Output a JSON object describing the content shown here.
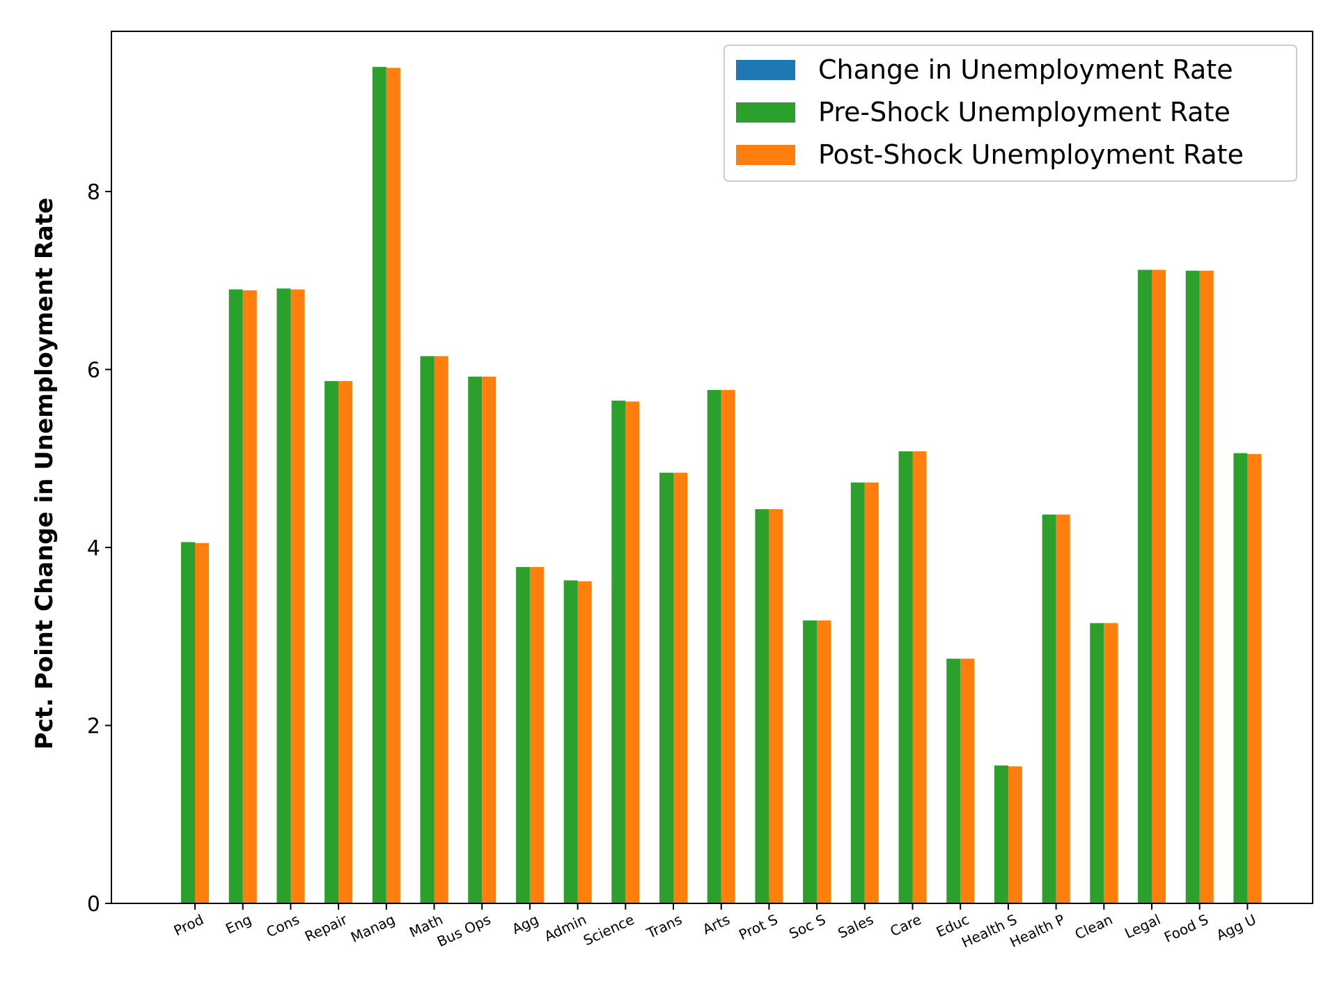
{
  "chart_data": {
    "type": "bar",
    "title": "",
    "xlabel": "",
    "ylabel": "Pct. Point Change in Unemployment Rate",
    "ylim": [
      0,
      9.8
    ],
    "yticks": [
      0,
      2,
      4,
      6,
      8
    ],
    "grid": false,
    "legend_position": "top-right",
    "categories": [
      "Prod",
      "Eng",
      "Cons",
      "Repair",
      "Manag",
      "Math",
      "Bus Ops",
      "Agg",
      "Admin",
      "Science",
      "Trans",
      "Arts",
      "Prot S",
      "Soc S",
      "Sales",
      "Care",
      "Educ",
      "Health S",
      "Health P",
      "Clean",
      "Legal",
      "Food S",
      "Agg U"
    ],
    "series": [
      {
        "name": "Change in Unemployment Rate",
        "color": "#1f77b4",
        "values": [
          0.01,
          0.01,
          0.01,
          0.0,
          0.01,
          0.0,
          0.0,
          0.0,
          0.01,
          0.01,
          0.0,
          0.0,
          0.0,
          0.0,
          0.0,
          0.0,
          0.0,
          0.01,
          0.0,
          0.0,
          0.0,
          0.0,
          0.01
        ]
      },
      {
        "name": "Pre-Shock Unemployment Rate",
        "color": "#2ca02c",
        "values": [
          4.06,
          6.9,
          6.91,
          5.87,
          9.4,
          6.15,
          5.92,
          3.78,
          3.63,
          5.65,
          4.84,
          5.77,
          4.43,
          3.18,
          4.73,
          5.08,
          2.75,
          1.55,
          4.37,
          3.15,
          7.12,
          7.11,
          5.06
        ]
      },
      {
        "name": "Post-Shock Unemployment Rate",
        "color": "#ff7f0e",
        "values": [
          4.05,
          6.89,
          6.9,
          5.87,
          9.39,
          6.15,
          5.92,
          3.78,
          3.62,
          5.64,
          4.84,
          5.77,
          4.43,
          3.18,
          4.73,
          5.08,
          2.75,
          1.54,
          4.37,
          3.15,
          7.12,
          7.11,
          5.05
        ]
      }
    ]
  }
}
